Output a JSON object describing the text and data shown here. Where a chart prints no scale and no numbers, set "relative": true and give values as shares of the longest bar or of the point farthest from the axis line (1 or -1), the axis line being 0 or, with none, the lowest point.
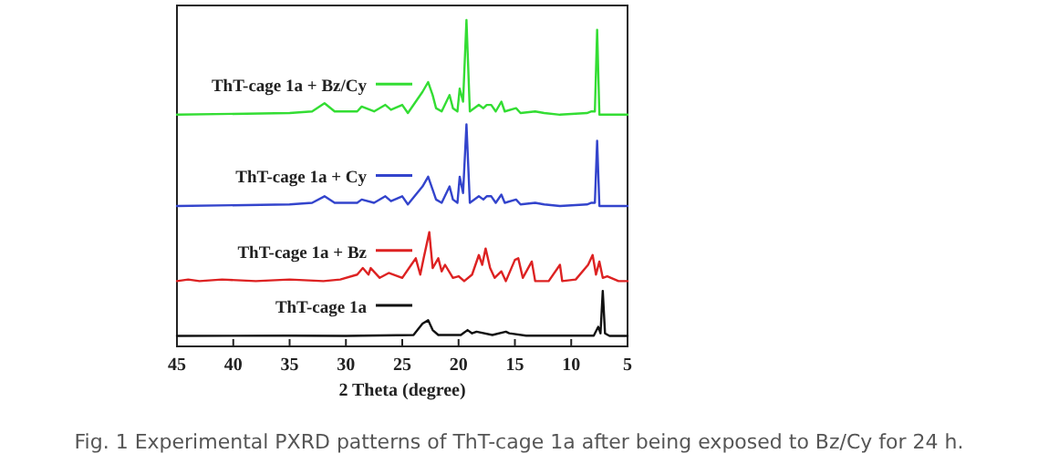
{
  "chart_data": {
    "type": "line",
    "relative": true,
    "xlabel": "2 Theta (degree)",
    "xlim": [
      45,
      5
    ],
    "xticks": [
      45,
      40,
      35,
      30,
      25,
      20,
      15,
      10,
      5
    ],
    "legend": "left",
    "annotations": [
      "Fig. 1 Experimental PXRD patterns of ThT-cage 1a after being exposed to Bz/Cy for 24 h."
    ],
    "series": [
      {
        "name": "ThT-cage 1a + Bz/Cy",
        "color": "#33dd33",
        "x": [
          45,
          35,
          33,
          31.9,
          31,
          29,
          28.6,
          27.5,
          26.5,
          26,
          25,
          24.5,
          23.2,
          22.7,
          22.3,
          22,
          21.5,
          20.8,
          20.5,
          20.1,
          19.9,
          19.6,
          19.3,
          19,
          18.2,
          17.8,
          17.5,
          17.1,
          16.7,
          16.2,
          15.9,
          14.9,
          14.5,
          13.2,
          12.4,
          11,
          8.6,
          8.2,
          7.9,
          7.7,
          7.5,
          5
        ],
        "values": [
          0.71,
          0.715,
          0.72,
          0.745,
          0.72,
          0.72,
          0.735,
          0.72,
          0.74,
          0.725,
          0.74,
          0.715,
          0.78,
          0.81,
          0.77,
          0.73,
          0.72,
          0.77,
          0.73,
          0.72,
          0.79,
          0.75,
          1,
          0.72,
          0.74,
          0.73,
          0.74,
          0.74,
          0.72,
          0.75,
          0.72,
          0.73,
          0.715,
          0.72,
          0.715,
          0.71,
          0.715,
          0.72,
          0.72,
          0.97,
          0.71,
          0.71
        ]
      },
      {
        "name": "ThT-cage 1a + Cy",
        "color": "#3344cc",
        "x": [
          45,
          35,
          33,
          31.9,
          31,
          29,
          28.6,
          27.5,
          26.5,
          26,
          25,
          24.5,
          23.2,
          22.7,
          22.3,
          22,
          21.5,
          20.8,
          20.5,
          20.1,
          19.9,
          19.6,
          19.3,
          19,
          18.2,
          17.8,
          17.5,
          17.1,
          16.7,
          16.2,
          15.9,
          14.9,
          14.5,
          13.2,
          12.4,
          11,
          8.6,
          8.2,
          7.9,
          7.7,
          7.5,
          5
        ],
        "values": [
          0.43,
          0.435,
          0.44,
          0.46,
          0.44,
          0.44,
          0.45,
          0.44,
          0.46,
          0.445,
          0.46,
          0.435,
          0.49,
          0.52,
          0.48,
          0.45,
          0.44,
          0.49,
          0.45,
          0.44,
          0.52,
          0.47,
          0.68,
          0.44,
          0.46,
          0.45,
          0.46,
          0.46,
          0.44,
          0.465,
          0.44,
          0.45,
          0.435,
          0.44,
          0.435,
          0.43,
          0.435,
          0.44,
          0.44,
          0.63,
          0.43,
          0.43
        ]
      },
      {
        "name": "ThT-cage 1a + Bz",
        "color": "#dd2222",
        "x": [
          45,
          44,
          43,
          41,
          38,
          35,
          32,
          30.5,
          29,
          28.5,
          28,
          27.8,
          27,
          26.2,
          25,
          24.2,
          23.8,
          23.4,
          23.1,
          22.6,
          22.3,
          21.8,
          21.5,
          21.2,
          20.5,
          20,
          19.5,
          18.8,
          18.2,
          17.9,
          17.6,
          17.2,
          16.8,
          16.2,
          15.8,
          15,
          14.7,
          14.3,
          13.5,
          13.2,
          12,
          11,
          10.8,
          9.6,
          8.5,
          8.1,
          7.8,
          7.5,
          7.2,
          6.8,
          5.8,
          5
        ],
        "values": [
          0.2,
          0.205,
          0.2,
          0.205,
          0.2,
          0.205,
          0.2,
          0.205,
          0.22,
          0.24,
          0.22,
          0.24,
          0.21,
          0.225,
          0.21,
          0.25,
          0.27,
          0.22,
          0.27,
          0.35,
          0.24,
          0.27,
          0.23,
          0.25,
          0.21,
          0.215,
          0.2,
          0.22,
          0.28,
          0.25,
          0.3,
          0.24,
          0.21,
          0.23,
          0.2,
          0.265,
          0.27,
          0.21,
          0.26,
          0.2,
          0.2,
          0.25,
          0.2,
          0.205,
          0.25,
          0.28,
          0.22,
          0.26,
          0.21,
          0.215,
          0.2,
          0.2
        ]
      },
      {
        "name": "ThT-cage 1a",
        "color": "#111111",
        "x": [
          45,
          35,
          30,
          24,
          23.2,
          22.7,
          22.3,
          21.8,
          19.8,
          19.2,
          18.8,
          18.4,
          17,
          15.8,
          15.5,
          14,
          8,
          7.6,
          7.4,
          7.2,
          7,
          6.6,
          5
        ],
        "values": [
          0.032,
          0.033,
          0.032,
          0.035,
          0.07,
          0.08,
          0.05,
          0.035,
          0.035,
          0.05,
          0.04,
          0.045,
          0.035,
          0.045,
          0.04,
          0.033,
          0.033,
          0.06,
          0.04,
          0.17,
          0.04,
          0.032,
          0.032
        ]
      }
    ]
  }
}
